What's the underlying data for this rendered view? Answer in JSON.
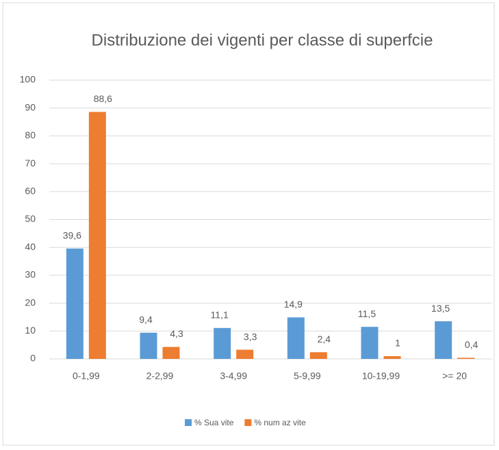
{
  "chart_data": {
    "type": "bar",
    "title": "Distribuzione dei vigenti per classe di superfcie",
    "categories": [
      "0-1,99",
      "2-2,99",
      "3-4,99",
      "5-9,99",
      "10-19,99",
      ">= 20"
    ],
    "series": [
      {
        "name": "% Sua vite",
        "color": "#5b9bd5",
        "values": [
          39.6,
          9.4,
          11.1,
          14.9,
          11.5,
          13.5
        ],
        "value_labels": [
          "39,6",
          "9,4",
          "11,1",
          "14,9",
          "11,5",
          "13,5"
        ]
      },
      {
        "name": "% num az vite",
        "color": "#ed7d31",
        "values": [
          88.6,
          4.3,
          3.3,
          2.4,
          1,
          0.4
        ],
        "value_labels": [
          "88,6",
          "4,3",
          "3,3",
          "2,4",
          "1",
          "0,4"
        ]
      }
    ],
    "ylim": [
      0,
      100
    ],
    "yticks": [
      0,
      10,
      20,
      30,
      40,
      50,
      60,
      70,
      80,
      90,
      100
    ],
    "grid": true,
    "legend": "bottom"
  }
}
